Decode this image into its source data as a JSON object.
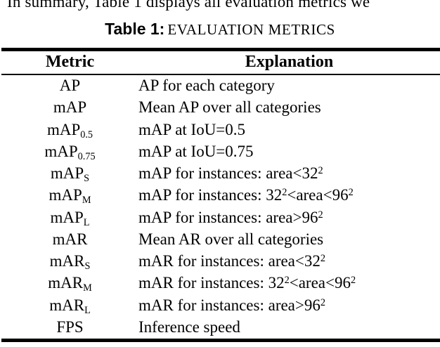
{
  "intro_text": "In summary, Table 1 displays all evaluation metrics we",
  "caption": {
    "label": "Table 1:",
    "title": "EVALUATION METRICS"
  },
  "table": {
    "headers": [
      "Metric",
      "Explanation"
    ],
    "rows": [
      {
        "metric": [
          {
            "t": "AP"
          }
        ],
        "explanation": [
          {
            "t": "AP for each category"
          }
        ]
      },
      {
        "metric": [
          {
            "t": "mAP"
          }
        ],
        "explanation": [
          {
            "t": "Mean AP over all categories"
          }
        ]
      },
      {
        "metric": [
          {
            "t": "mAP"
          },
          {
            "sub": "0.5"
          }
        ],
        "explanation": [
          {
            "t": "mAP at IoU=0.5"
          }
        ]
      },
      {
        "metric": [
          {
            "t": "mAP"
          },
          {
            "sub": "0.75"
          }
        ],
        "explanation": [
          {
            "t": "mAP at IoU=0.75"
          }
        ]
      },
      {
        "metric": [
          {
            "t": "mAP"
          },
          {
            "sub": "S"
          }
        ],
        "explanation": [
          {
            "t": "mAP for instances: area<32"
          },
          {
            "sup": "2"
          }
        ]
      },
      {
        "metric": [
          {
            "t": "mAP"
          },
          {
            "sub": "M"
          }
        ],
        "explanation": [
          {
            "t": "mAP for instances: 32"
          },
          {
            "sup": "2"
          },
          {
            "t": "<area<96"
          },
          {
            "sup": "2"
          }
        ]
      },
      {
        "metric": [
          {
            "t": "mAP"
          },
          {
            "sub": "L"
          }
        ],
        "explanation": [
          {
            "t": "mAP for instances: area>96"
          },
          {
            "sup": "2"
          }
        ]
      },
      {
        "metric": [
          {
            "t": "mAR"
          }
        ],
        "explanation": [
          {
            "t": "Mean AR over all categories"
          }
        ]
      },
      {
        "metric": [
          {
            "t": "mAR"
          },
          {
            "sub": "S"
          }
        ],
        "explanation": [
          {
            "t": "mAR for instances: area<32"
          },
          {
            "sup": "2"
          }
        ]
      },
      {
        "metric": [
          {
            "t": "mAR"
          },
          {
            "sub": "M"
          }
        ],
        "explanation": [
          {
            "t": "mAR for instances: 32"
          },
          {
            "sup": "2"
          },
          {
            "t": "<area<96"
          },
          {
            "sup": "2"
          }
        ]
      },
      {
        "metric": [
          {
            "t": "mAR"
          },
          {
            "sub": "L"
          }
        ],
        "explanation": [
          {
            "t": "mAR for instances: area>96"
          },
          {
            "sup": "2"
          }
        ]
      },
      {
        "metric": [
          {
            "t": "FPS"
          }
        ],
        "explanation": [
          {
            "t": "Inference speed"
          }
        ]
      }
    ]
  },
  "colors": {
    "text": "#000000",
    "background": "#ffffff",
    "rule": "#000000"
  }
}
